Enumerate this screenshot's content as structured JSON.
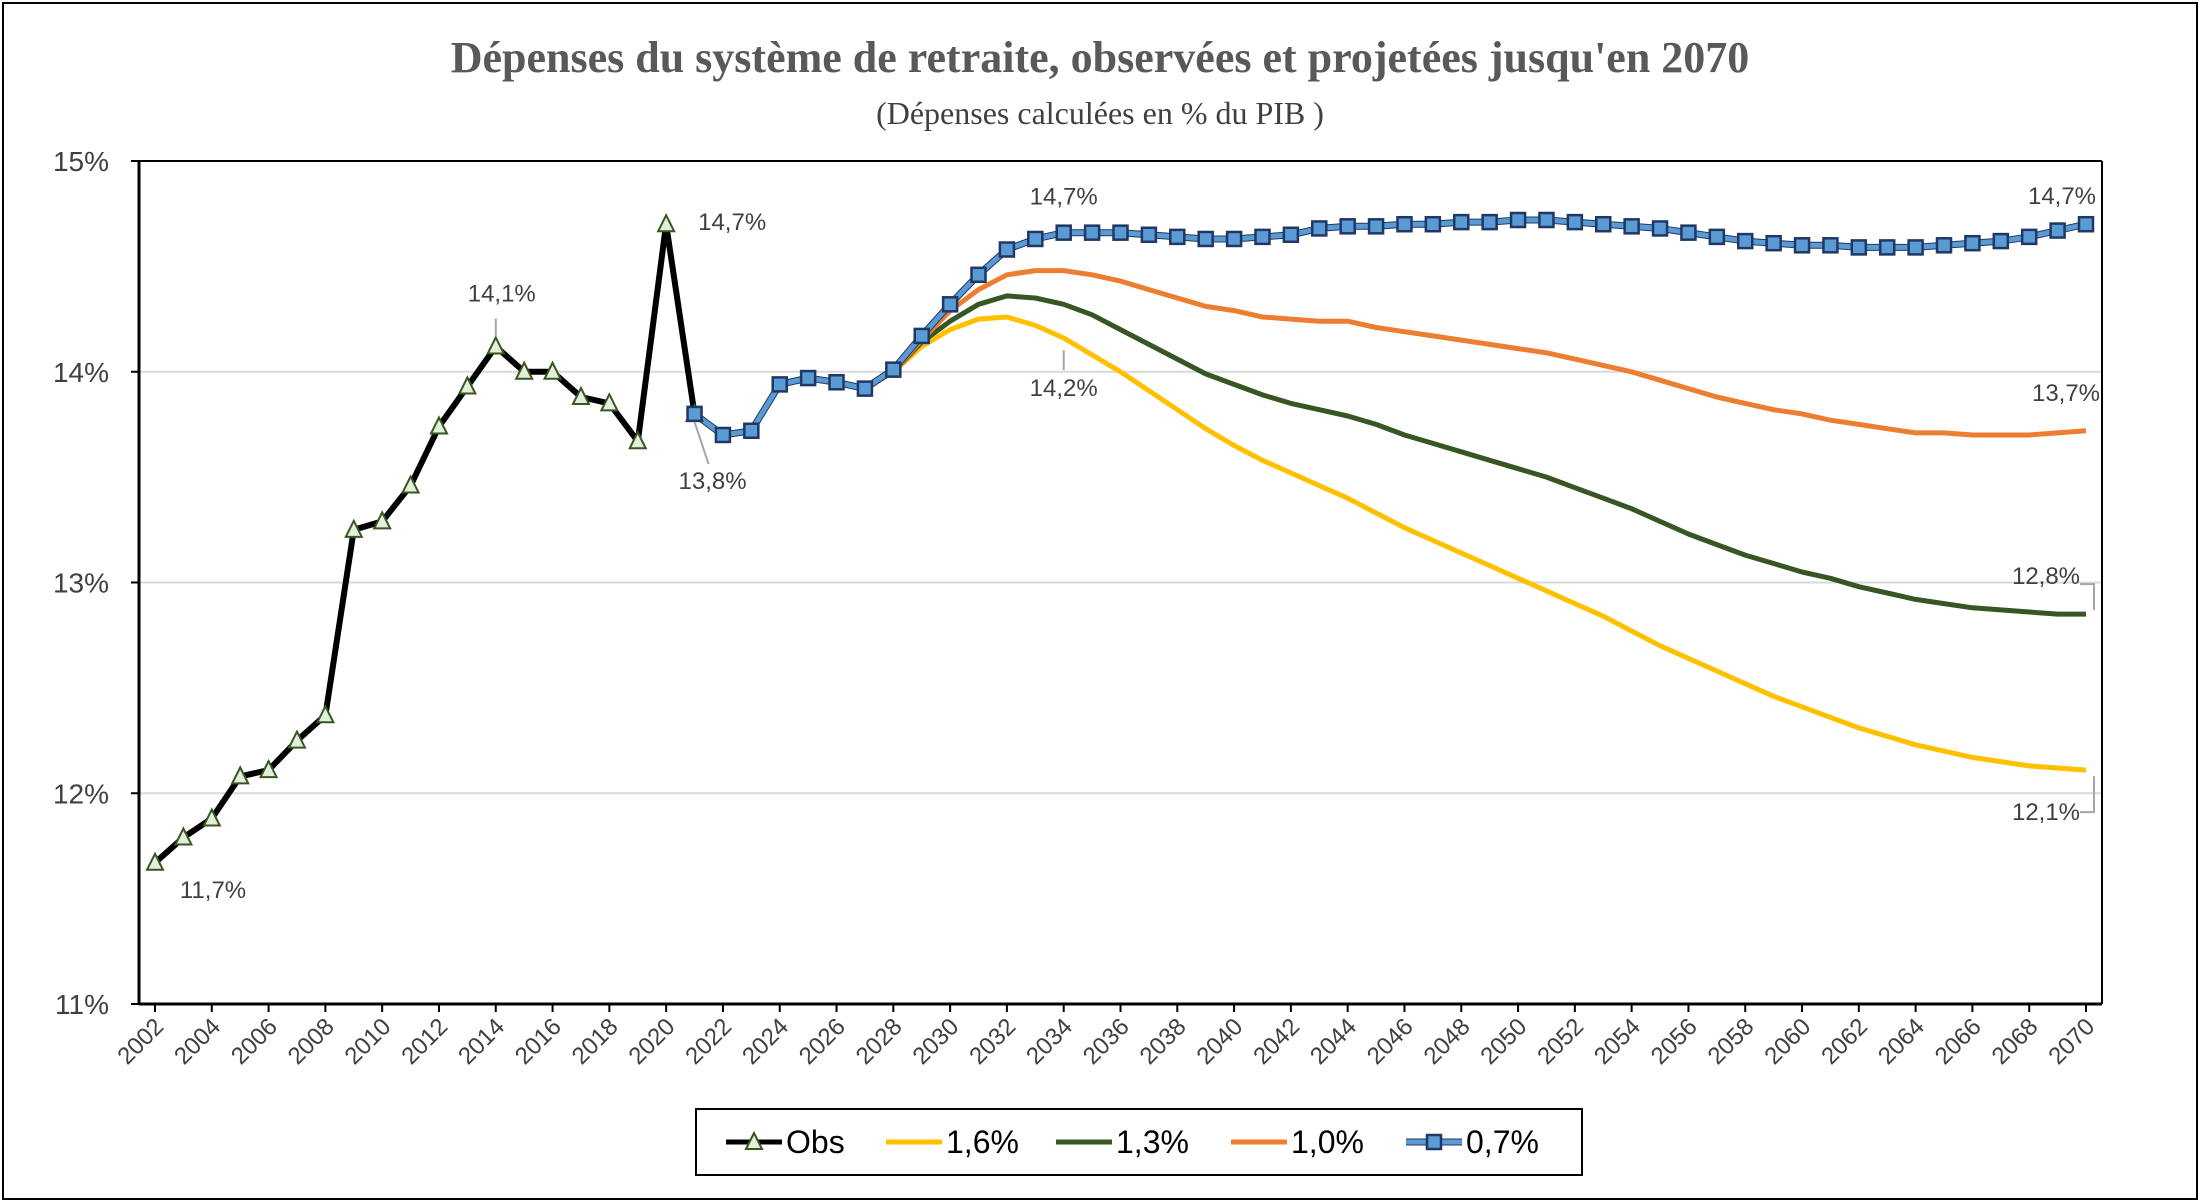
{
  "chart_data": {
    "type": "line",
    "title": "Dépenses du système de retraite, observées et projetées jusqu'en 2070",
    "subtitle": "(Dépenses calculées  en % du PIB )",
    "x_ticks": [
      "2002",
      "2004",
      "2006",
      "2008",
      "2010",
      "2012",
      "2014",
      "2016",
      "2018",
      "2020",
      "2022",
      "2024",
      "2026",
      "2028",
      "2030",
      "2032",
      "2034",
      "2036",
      "2038",
      "2040",
      "2042",
      "2044",
      "2046",
      "2048",
      "2050",
      "2052",
      "2054",
      "2056",
      "2058",
      "2060",
      "2062",
      "2064",
      "2066",
      "2068",
      "2070"
    ],
    "y_ticks": [
      "11%",
      "12%",
      "13%",
      "14%",
      "15%"
    ],
    "xlim": [
      2002,
      2070
    ],
    "ylim": [
      11,
      15
    ],
    "grid": "horizontal",
    "legend_position": "bottom",
    "series": [
      {
        "name": "Obs",
        "color": "#000000",
        "marker": "triangle",
        "x": [
          2002,
          2003,
          2004,
          2005,
          2006,
          2007,
          2008,
          2009,
          2010,
          2011,
          2012,
          2013,
          2014,
          2015,
          2016,
          2017,
          2018,
          2019,
          2020,
          2021
        ],
        "y": [
          11.67,
          11.79,
          11.88,
          12.08,
          12.11,
          12.25,
          12.37,
          13.25,
          13.29,
          13.46,
          13.74,
          13.93,
          14.12,
          14.0,
          14.0,
          13.88,
          13.85,
          13.67,
          14.7,
          13.8
        ]
      },
      {
        "name": "1,6%",
        "color": "#ffc000",
        "marker": "none",
        "x": [
          2021,
          2022,
          2023,
          2024,
          2025,
          2026,
          2027,
          2028,
          2029,
          2030,
          2031,
          2032,
          2033,
          2034,
          2035,
          2036,
          2037,
          2038,
          2039,
          2040,
          2041,
          2042,
          2043,
          2044,
          2045,
          2046,
          2047,
          2048,
          2049,
          2050,
          2051,
          2052,
          2053,
          2054,
          2055,
          2056,
          2057,
          2058,
          2059,
          2060,
          2061,
          2062,
          2063,
          2064,
          2065,
          2066,
          2067,
          2068,
          2069,
          2070
        ],
        "y": [
          13.8,
          13.7,
          13.72,
          13.94,
          13.97,
          13.95,
          13.92,
          14.0,
          14.12,
          14.2,
          14.25,
          14.26,
          14.22,
          14.16,
          14.08,
          14.0,
          13.91,
          13.82,
          13.73,
          13.65,
          13.58,
          13.52,
          13.46,
          13.4,
          13.33,
          13.26,
          13.2,
          13.14,
          13.08,
          13.02,
          12.96,
          12.9,
          12.84,
          12.77,
          12.7,
          12.64,
          12.58,
          12.52,
          12.46,
          12.41,
          12.36,
          12.31,
          12.27,
          12.23,
          12.2,
          12.17,
          12.15,
          12.13,
          12.12,
          12.11
        ]
      },
      {
        "name": "1,3%",
        "color": "#375623",
        "marker": "none",
        "x": [
          2021,
          2022,
          2023,
          2024,
          2025,
          2026,
          2027,
          2028,
          2029,
          2030,
          2031,
          2032,
          2033,
          2034,
          2035,
          2036,
          2037,
          2038,
          2039,
          2040,
          2041,
          2042,
          2043,
          2044,
          2045,
          2046,
          2047,
          2048,
          2049,
          2050,
          2051,
          2052,
          2053,
          2054,
          2055,
          2056,
          2057,
          2058,
          2059,
          2060,
          2061,
          2062,
          2063,
          2064,
          2065,
          2066,
          2067,
          2068,
          2069,
          2070
        ],
        "y": [
          13.8,
          13.7,
          13.72,
          13.94,
          13.97,
          13.95,
          13.92,
          14.0,
          14.14,
          14.24,
          14.32,
          14.36,
          14.35,
          14.32,
          14.27,
          14.2,
          14.13,
          14.06,
          13.99,
          13.94,
          13.89,
          13.85,
          13.82,
          13.79,
          13.75,
          13.7,
          13.66,
          13.62,
          13.58,
          13.54,
          13.5,
          13.45,
          13.4,
          13.35,
          13.29,
          13.23,
          13.18,
          13.13,
          13.09,
          13.05,
          13.02,
          12.98,
          12.95,
          12.92,
          12.9,
          12.88,
          12.87,
          12.86,
          12.85,
          12.85
        ]
      },
      {
        "name": "1,0%",
        "color": "#ed7d31",
        "marker": "none",
        "x": [
          2021,
          2022,
          2023,
          2024,
          2025,
          2026,
          2027,
          2028,
          2029,
          2030,
          2031,
          2032,
          2033,
          2034,
          2035,
          2036,
          2037,
          2038,
          2039,
          2040,
          2041,
          2042,
          2043,
          2044,
          2045,
          2046,
          2047,
          2048,
          2049,
          2050,
          2051,
          2052,
          2053,
          2054,
          2055,
          2056,
          2057,
          2058,
          2059,
          2060,
          2061,
          2062,
          2063,
          2064,
          2065,
          2066,
          2067,
          2068,
          2069,
          2070
        ],
        "y": [
          13.8,
          13.7,
          13.72,
          13.94,
          13.97,
          13.95,
          13.92,
          14.0,
          14.15,
          14.29,
          14.39,
          14.46,
          14.48,
          14.48,
          14.46,
          14.43,
          14.39,
          14.35,
          14.31,
          14.29,
          14.26,
          14.25,
          14.24,
          14.24,
          14.21,
          14.19,
          14.17,
          14.15,
          14.13,
          14.11,
          14.09,
          14.06,
          14.03,
          14.0,
          13.96,
          13.92,
          13.88,
          13.85,
          13.82,
          13.8,
          13.77,
          13.75,
          13.73,
          13.71,
          13.71,
          13.7,
          13.7,
          13.7,
          13.71,
          13.72
        ]
      },
      {
        "name": "0,7%",
        "color": "#5b9bd5",
        "marker": "square",
        "x": [
          2021,
          2022,
          2023,
          2024,
          2025,
          2026,
          2027,
          2028,
          2029,
          2030,
          2031,
          2032,
          2033,
          2034,
          2035,
          2036,
          2037,
          2038,
          2039,
          2040,
          2041,
          2042,
          2043,
          2044,
          2045,
          2046,
          2047,
          2048,
          2049,
          2050,
          2051,
          2052,
          2053,
          2054,
          2055,
          2056,
          2057,
          2058,
          2059,
          2060,
          2061,
          2062,
          2063,
          2064,
          2065,
          2066,
          2067,
          2068,
          2069,
          2070
        ],
        "y": [
          13.8,
          13.7,
          13.72,
          13.94,
          13.97,
          13.95,
          13.92,
          14.01,
          14.17,
          14.32,
          14.46,
          14.58,
          14.63,
          14.66,
          14.66,
          14.66,
          14.65,
          14.64,
          14.63,
          14.63,
          14.64,
          14.65,
          14.68,
          14.69,
          14.69,
          14.7,
          14.7,
          14.71,
          14.71,
          14.72,
          14.72,
          14.71,
          14.7,
          14.69,
          14.68,
          14.66,
          14.64,
          14.62,
          14.61,
          14.6,
          14.6,
          14.59,
          14.59,
          14.59,
          14.6,
          14.61,
          14.62,
          14.64,
          14.67,
          14.7
        ]
      }
    ],
    "data_labels": [
      {
        "text": "11,7%",
        "x": 2002,
        "y": 11.67,
        "series": "Obs"
      },
      {
        "text": "14,1%",
        "x": 2014,
        "y": 14.12,
        "series": "Obs"
      },
      {
        "text": "14,7%",
        "x": 2020,
        "y": 14.7,
        "series": "Obs"
      },
      {
        "text": "13,8%",
        "x": 2021,
        "y": 13.8,
        "series": "Obs"
      },
      {
        "text": "14,7%",
        "x": 2034,
        "y": 14.66,
        "series": "0,7%"
      },
      {
        "text": "14,2%",
        "x": 2034,
        "y": 14.16,
        "series": "1,6%"
      },
      {
        "text": "14,7%",
        "x": 2070,
        "y": 14.7,
        "series": "0,7%"
      },
      {
        "text": "13,7%",
        "x": 2070,
        "y": 13.72,
        "series": "1,0%"
      },
      {
        "text": "12,8%",
        "x": 2070,
        "y": 12.85,
        "series": "1,3%"
      },
      {
        "text": "12,1%",
        "x": 2070,
        "y": 12.11,
        "series": "1,6%"
      }
    ]
  }
}
